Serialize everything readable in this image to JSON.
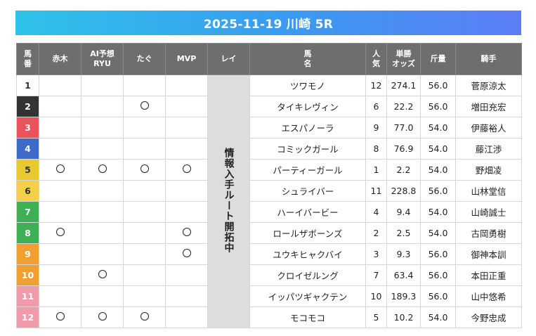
{
  "title": "2025-11-19 川崎 5R",
  "headers": {
    "umaban": "馬\n番",
    "akagi": "赤木",
    "ai": "AI予想\nRYU",
    "tagu": "たぐ",
    "mvp": "MVP",
    "rei": "レイ",
    "name": "馬\n名",
    "ninki": "人\n気",
    "odds": "単勝\nオッズ",
    "kinryo": "斤量",
    "jockey": "騎手"
  },
  "rei_note": "情報入手ルート開拓中",
  "mark_symbol": "◯",
  "rows": [
    {
      "num": "1",
      "color": "#ffffff",
      "akagi": false,
      "ai": false,
      "tagu": false,
      "mvp": false,
      "name": "ツワモノ",
      "ninki": "12",
      "odds": "274.1",
      "kinryo": "56.0",
      "jockey": "菅原涼太"
    },
    {
      "num": "2",
      "color": "#333333",
      "akagi": false,
      "ai": false,
      "tagu": true,
      "mvp": false,
      "name": "タイキレヴィン",
      "ninki": "6",
      "odds": "22.2",
      "kinryo": "56.0",
      "jockey": "増田充宏"
    },
    {
      "num": "3",
      "color": "#e8545a",
      "akagi": false,
      "ai": false,
      "tagu": false,
      "mvp": false,
      "name": "エスパノーラ",
      "ninki": "9",
      "odds": "77.0",
      "kinryo": "54.0",
      "jockey": "伊藤裕人"
    },
    {
      "num": "4",
      "color": "#3d6cc8",
      "akagi": false,
      "ai": false,
      "tagu": false,
      "mvp": false,
      "name": "コミックガール",
      "ninki": "8",
      "odds": "76.9",
      "kinryo": "54.0",
      "jockey": "藤江渉"
    },
    {
      "num": "5",
      "color": "#e8c930",
      "akagi": true,
      "ai": true,
      "tagu": true,
      "mvp": true,
      "name": "パーティーガール",
      "ninki": "1",
      "odds": "2.2",
      "kinryo": "54.0",
      "jockey": "野畑凌"
    },
    {
      "num": "6",
      "color": "#f2d04a",
      "akagi": false,
      "ai": false,
      "tagu": false,
      "mvp": false,
      "name": "シュライバー",
      "ninki": "11",
      "odds": "228.8",
      "kinryo": "56.0",
      "jockey": "山林堂信"
    },
    {
      "num": "7",
      "color": "#3faf55",
      "akagi": false,
      "ai": false,
      "tagu": false,
      "mvp": false,
      "name": "ハーイバービー",
      "ninki": "4",
      "odds": "9.4",
      "kinryo": "54.0",
      "jockey": "山崎誠士"
    },
    {
      "num": "8",
      "color": "#3faf55",
      "akagi": true,
      "ai": false,
      "tagu": false,
      "mvp": true,
      "name": "ロールザボーンズ",
      "ninki": "2",
      "odds": "2.5",
      "kinryo": "54.0",
      "jockey": "古岡勇樹"
    },
    {
      "num": "9",
      "color": "#f0a030",
      "akagi": false,
      "ai": false,
      "tagu": false,
      "mvp": true,
      "name": "ユウキヒャクバイ",
      "ninki": "3",
      "odds": "9.3",
      "kinryo": "56.0",
      "jockey": "御神本訓"
    },
    {
      "num": "10",
      "color": "#f0a030",
      "akagi": false,
      "ai": true,
      "tagu": false,
      "mvp": false,
      "name": "クロイゼルング",
      "ninki": "7",
      "odds": "63.4",
      "kinryo": "56.0",
      "jockey": "本田正重"
    },
    {
      "num": "11",
      "color": "#f09aaa",
      "akagi": false,
      "ai": false,
      "tagu": false,
      "mvp": false,
      "name": "イッパツギャクテン",
      "ninki": "10",
      "odds": "189.3",
      "kinryo": "56.0",
      "jockey": "山中悠希"
    },
    {
      "num": "12",
      "color": "#f09aaa",
      "akagi": true,
      "ai": true,
      "tagu": true,
      "mvp": false,
      "name": "モコモコ",
      "ninki": "5",
      "odds": "10.2",
      "kinryo": "54.0",
      "jockey": "今野忠成"
    }
  ]
}
